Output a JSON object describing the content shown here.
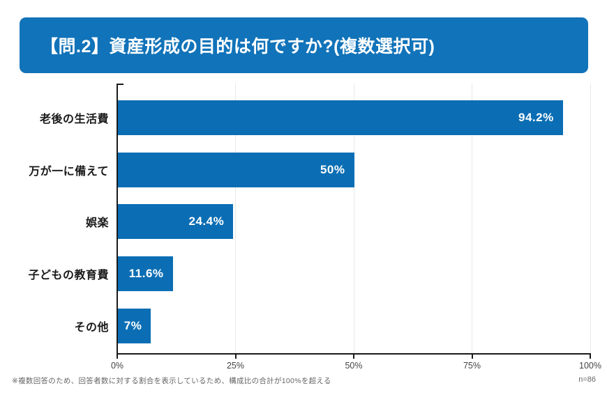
{
  "header": {
    "title": "【問.2】資産形成の目的は何ですか?(複数選択可)"
  },
  "chart_data": {
    "type": "bar",
    "orientation": "horizontal",
    "title": "【問.2】資産形成の目的は何ですか?(複数選択可)",
    "categories": [
      "老後の生活費",
      "万が一に備えて",
      "娯楽",
      "子どもの教育費",
      "その他"
    ],
    "values": [
      94.2,
      50,
      24.4,
      11.6,
      7
    ],
    "value_labels": [
      "94.2%",
      "50%",
      "24.4%",
      "11.6%",
      "7%"
    ],
    "xlabel": "",
    "ylabel": "",
    "xlim": [
      0,
      100
    ],
    "x_ticks": [
      0,
      25,
      50,
      75,
      100
    ],
    "x_tick_labels": [
      "0%",
      "25%",
      "50%",
      "75%",
      "100%"
    ],
    "grid": "vertical-light",
    "legend": "none"
  },
  "footer": {
    "note": "※複数回答のため、回答者数に対する割合を表示しているため、構成比の合計が100%を超える",
    "sample_size": "n=86"
  },
  "colors": {
    "banner_bg": "#1173b9",
    "bar": "#0b6eb4",
    "grid": "#e8e8e8",
    "axis": "#1a1a1a",
    "value_text": "#ffffff"
  }
}
